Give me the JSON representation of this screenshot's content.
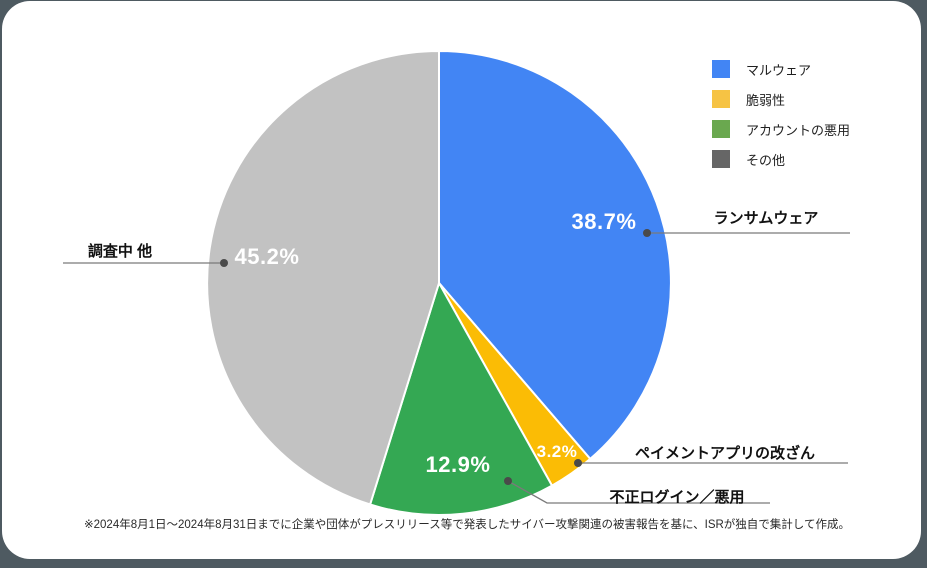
{
  "chart_data": {
    "type": "pie",
    "title": "",
    "unit": "%",
    "start_angle_deg": 0,
    "direction": "clockwise",
    "legend_position": "top-right",
    "slices": [
      {
        "label": "マルウェア",
        "callout": "ランサムウェア",
        "value": 38.7,
        "pct_label": "38.7%",
        "color": "#4285f4"
      },
      {
        "label": "脆弱性",
        "callout": "ペイメントアプリの改ざん",
        "value": 3.2,
        "pct_label": "3.2%",
        "color": "#fbbc05"
      },
      {
        "label": "アカウントの悪用",
        "callout": "不正ログイン／悪用",
        "value": 12.9,
        "pct_label": "12.9%",
        "color": "#34a853"
      },
      {
        "label": "その他",
        "callout": "調査中 他",
        "value": 45.2,
        "pct_label": "45.2%",
        "color": "#c2c2c2"
      }
    ]
  },
  "legend": {
    "items": [
      {
        "label": "マルウェア",
        "color": "#4285f4"
      },
      {
        "label": "脆弱性",
        "color": "#f6c344"
      },
      {
        "label": "アカウントの悪用",
        "color": "#6aa84f"
      },
      {
        "label": "その他",
        "color": "#666666"
      }
    ]
  },
  "footnote": "※2024年8月1日～2024年8月31日までに企業や団体がプレスリリース等で発表したサイバー攻撃関連の被害報告を基に、ISRが独自で集計して作成。",
  "colors": {
    "background": "#4e5a61",
    "card": "#ffffff",
    "callout_line": "#7a7a7a",
    "callout_dot": "#4a4a4a"
  }
}
